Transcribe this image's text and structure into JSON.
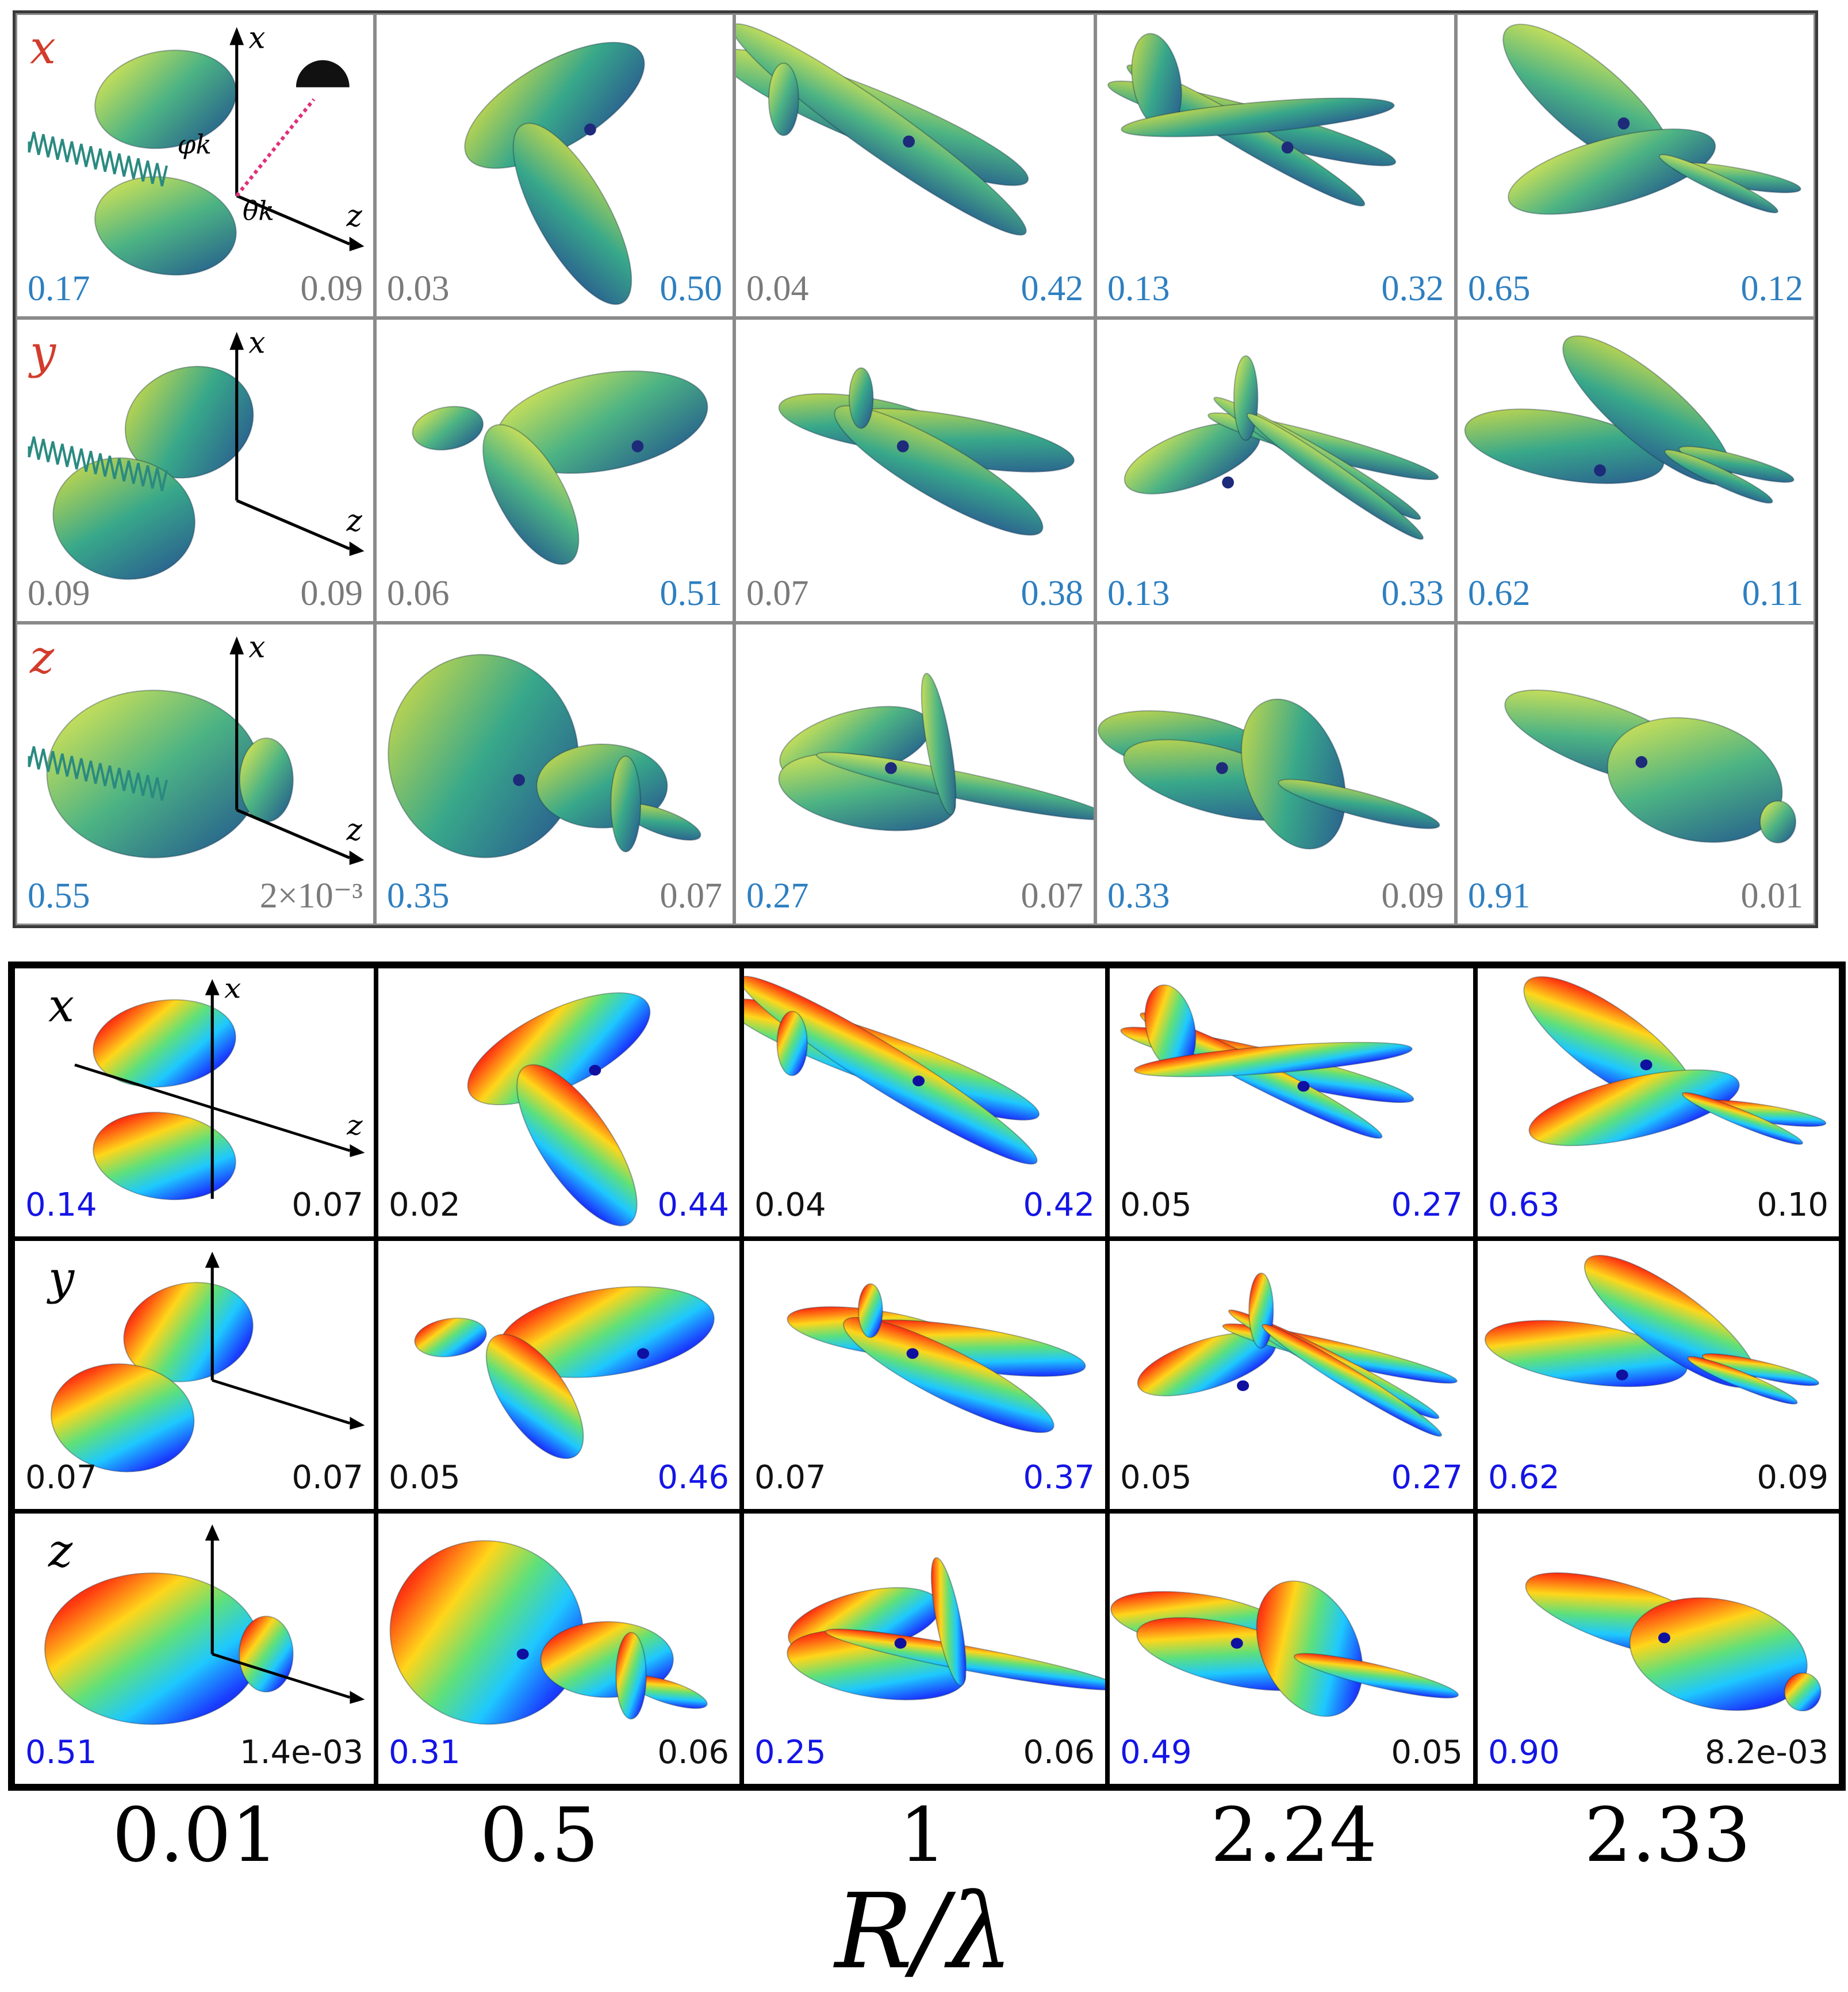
{
  "top_panel": {
    "rows": [
      {
        "label": "x",
        "cells": [
          {
            "left": "0.17",
            "right": "0.09",
            "left_color": "blue",
            "right_color": "gray"
          },
          {
            "left": "0.03",
            "right": "0.50",
            "left_color": "gray",
            "right_color": "blue"
          },
          {
            "left": "0.04",
            "right": "0.42",
            "left_color": "gray",
            "right_color": "blue"
          },
          {
            "left": "0.13",
            "right": "0.32",
            "left_color": "blue",
            "right_color": "blue"
          },
          {
            "left": "0.65",
            "right": "0.12",
            "left_color": "blue",
            "right_color": "blue"
          }
        ]
      },
      {
        "label": "y",
        "cells": [
          {
            "left": "0.09",
            "right": "0.09",
            "left_color": "gray",
            "right_color": "gray"
          },
          {
            "left": "0.06",
            "right": "0.51",
            "left_color": "gray",
            "right_color": "blue"
          },
          {
            "left": "0.07",
            "right": "0.38",
            "left_color": "gray",
            "right_color": "blue"
          },
          {
            "left": "0.13",
            "right": "0.33",
            "left_color": "blue",
            "right_color": "blue"
          },
          {
            "left": "0.62",
            "right": "0.11",
            "left_color": "blue",
            "right_color": "blue"
          }
        ]
      },
      {
        "label": "z",
        "cells": [
          {
            "left": "0.55",
            "right": "2×10⁻³",
            "left_color": "blue",
            "right_color": "gray"
          },
          {
            "left": "0.35",
            "right": "0.07",
            "left_color": "blue",
            "right_color": "gray"
          },
          {
            "left": "0.27",
            "right": "0.07",
            "left_color": "blue",
            "right_color": "gray"
          },
          {
            "left": "0.33",
            "right": "0.09",
            "left_color": "blue",
            "right_color": "gray"
          },
          {
            "left": "0.91",
            "right": "0.01",
            "left_color": "blue",
            "right_color": "gray"
          }
        ]
      }
    ],
    "axis_labels": {
      "x": "x",
      "z": "z",
      "phi": "φ",
      "phi_sub": "k",
      "theta": "θ",
      "theta_sub": "k"
    }
  },
  "bottom_panel": {
    "rows": [
      {
        "label": "x",
        "cells": [
          {
            "left": "0.14",
            "right": "0.07",
            "left_color": "blue",
            "right_color": "black"
          },
          {
            "left": "0.02",
            "right": "0.44",
            "left_color": "black",
            "right_color": "blue"
          },
          {
            "left": "0.04",
            "right": "0.42",
            "left_color": "black",
            "right_color": "blue"
          },
          {
            "left": "0.05",
            "right": "0.27",
            "left_color": "black",
            "right_color": "blue"
          },
          {
            "left": "0.63",
            "right": "0.10",
            "left_color": "blue",
            "right_color": "black"
          }
        ]
      },
      {
        "label": "y",
        "cells": [
          {
            "left": "0.07",
            "right": "0.07",
            "left_color": "black",
            "right_color": "black"
          },
          {
            "left": "0.05",
            "right": "0.46",
            "left_color": "black",
            "right_color": "blue"
          },
          {
            "left": "0.07",
            "right": "0.37",
            "left_color": "black",
            "right_color": "blue"
          },
          {
            "left": "0.05",
            "right": "0.27",
            "left_color": "black",
            "right_color": "blue"
          },
          {
            "left": "0.62",
            "right": "0.09",
            "left_color": "blue",
            "right_color": "black"
          }
        ]
      },
      {
        "label": "z",
        "cells": [
          {
            "left": "0.51",
            "right": "1.4e-03",
            "left_color": "blue",
            "right_color": "black"
          },
          {
            "left": "0.31",
            "right": "0.06",
            "left_color": "blue",
            "right_color": "black"
          },
          {
            "left": "0.25",
            "right": "0.06",
            "left_color": "blue",
            "right_color": "black"
          },
          {
            "left": "0.49",
            "right": "0.05",
            "left_color": "blue",
            "right_color": "black"
          },
          {
            "left": "0.90",
            "right": "8.2e-03",
            "left_color": "blue",
            "right_color": "black"
          }
        ]
      }
    ],
    "axis_labels": {
      "x": "x",
      "z": "z"
    }
  },
  "x_ticks": [
    "0.01",
    "0.5",
    "1",
    "2.24",
    "2.33"
  ],
  "x_axis_title": "R/λ",
  "colors": {
    "row_label_top": "#d23c2c",
    "blue_top": "#2e7fc0",
    "gray_top": "#7a7a7a",
    "blue_bottom": "#1414e6",
    "black_bottom": "#111111"
  }
}
